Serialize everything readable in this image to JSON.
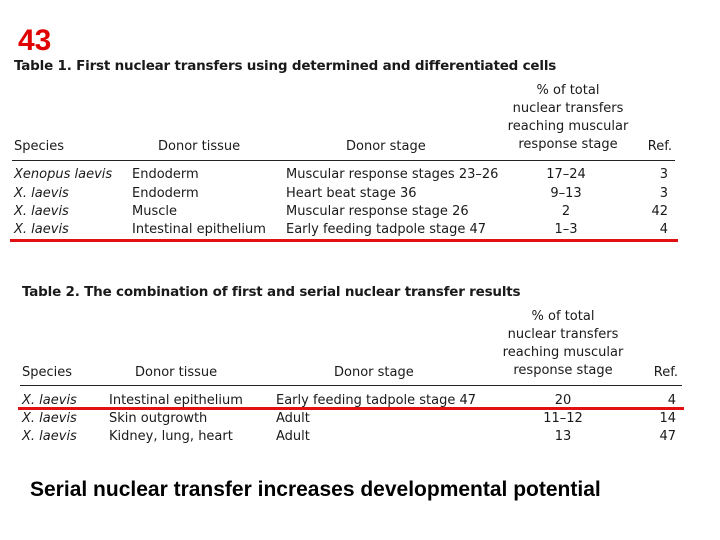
{
  "slide_number": "43",
  "table1": {
    "title": "Table 1. First nuclear transfers using determined and differentiated cells",
    "headers": {
      "species": "Species",
      "donor_tissue": "Donor tissue",
      "donor_stage": "Donor stage",
      "pct": [
        "% of total",
        "nuclear transfers",
        "reaching muscular",
        "response stage"
      ],
      "ref": "Ref."
    },
    "rows": [
      {
        "species": "Xenopus laevis",
        "tissue": "Endoderm",
        "stage": "Muscular response stages 23–26",
        "pct": "17–24",
        "ref": "3"
      },
      {
        "species": "X. laevis",
        "tissue": "Endoderm",
        "stage": "Heart beat stage 36",
        "pct": "9–13",
        "ref": "3"
      },
      {
        "species": "X. laevis",
        "tissue": "Muscle",
        "stage": "Muscular response stage 26",
        "pct": "2",
        "ref": "42"
      },
      {
        "species": "X. laevis",
        "tissue": "Intestinal epithelium",
        "stage": "Early feeding tadpole stage 47",
        "pct": "1–3",
        "ref": "4"
      }
    ]
  },
  "table2": {
    "title": "Table 2. The combination of first and serial nuclear transfer results",
    "headers": {
      "species": "Species",
      "donor_tissue": "Donor tissue",
      "donor_stage": "Donor stage",
      "pct": [
        "% of total",
        "nuclear transfers",
        "reaching muscular",
        "response stage"
      ],
      "ref": "Ref."
    },
    "rows": [
      {
        "species": "X. laevis",
        "tissue": "Intestinal epithelium",
        "stage": "Early feeding tadpole stage 47",
        "pct": "20",
        "ref": "4"
      },
      {
        "species": "X. laevis",
        "tissue": "Skin outgrowth",
        "stage": "Adult",
        "pct": "11–12",
        "ref": "14"
      },
      {
        "species": "X. laevis",
        "tissue": "Kidney, lung, heart",
        "stage": "Adult",
        "pct": "13",
        "ref": "47"
      }
    ]
  },
  "caption": "Serial nuclear transfer increases developmental potential",
  "colors": {
    "slide_number": "#e00000",
    "highlight_line": "#e21010",
    "text": "#1a1a1a"
  }
}
